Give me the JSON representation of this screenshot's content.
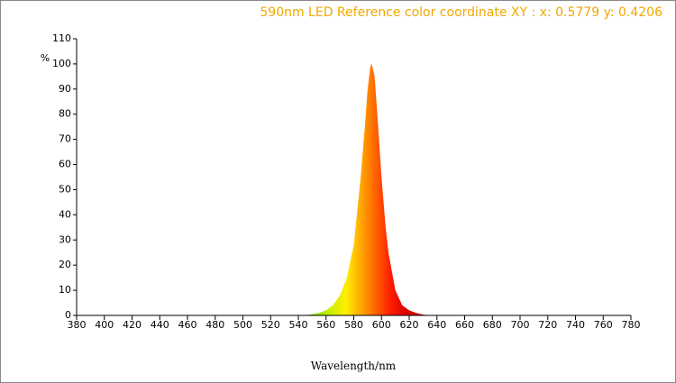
{
  "chart_data": {
    "type": "area",
    "title": "590nm LED Reference color coordinate XY :  x: 0.5779 y: 0.4206",
    "y_label": "%",
    "x_label": "Wavelength/nm",
    "x": [
      545,
      550,
      555,
      560,
      565,
      570,
      575,
      580,
      585,
      588,
      590,
      592,
      593,
      595,
      597,
      600,
      603,
      605,
      610,
      615,
      620,
      625,
      630,
      635
    ],
    "values": [
      0,
      0.5,
      1,
      2,
      4,
      8,
      15,
      28,
      55,
      75,
      90,
      99,
      100,
      95,
      80,
      55,
      35,
      25,
      10,
      4,
      2,
      1,
      0.3,
      0
    ],
    "xlim": [
      380,
      780
    ],
    "ylim": [
      0,
      110
    ],
    "xticks": [
      380,
      400,
      420,
      440,
      460,
      480,
      500,
      520,
      540,
      560,
      580,
      600,
      620,
      640,
      660,
      680,
      700,
      720,
      740,
      760,
      780
    ],
    "yticks": [
      0,
      10,
      20,
      30,
      40,
      50,
      60,
      70,
      80,
      90,
      100,
      110
    ]
  }
}
